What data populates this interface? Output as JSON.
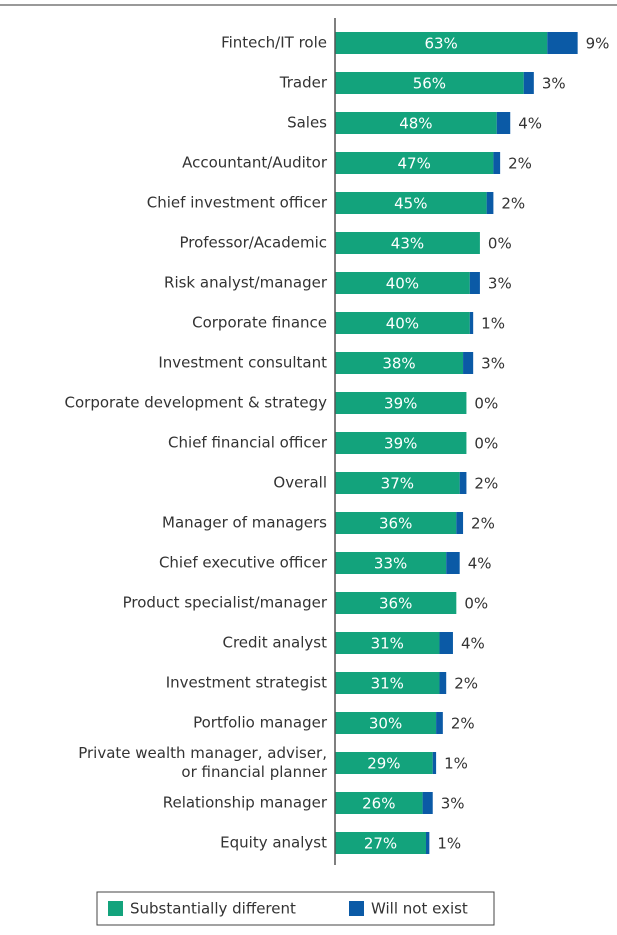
{
  "chart_data": {
    "type": "stacked-bar-horizontal",
    "categories": [
      "Fintech/IT role",
      "Trader",
      "Sales",
      "Accountant/Auditor",
      "Chief investment officer",
      "Professor/Academic",
      "Risk analyst/manager",
      "Corporate finance",
      "Investment consultant",
      "Corporate development & strategy",
      "Chief financial officer",
      "Overall",
      "Manager of managers",
      "Chief executive officer",
      "Product specialist/manager",
      "Credit analyst",
      "Investment strategist",
      "Portfolio manager",
      [
        "Private wealth manager, adviser,",
        "or financial planner"
      ],
      "Relationship manager",
      "Equity analyst"
    ],
    "series": [
      {
        "name": "Substantially different",
        "color": "#13a37c",
        "values": [
          63,
          56,
          48,
          47,
          45,
          43,
          40,
          40,
          38,
          39,
          39,
          37,
          36,
          33,
          36,
          31,
          31,
          30,
          29,
          26,
          27
        ],
        "value_labels": [
          "63%",
          "56%",
          "48%",
          "47%",
          "45%",
          "43%",
          "40%",
          "40%",
          "38%",
          "39%",
          "39%",
          "37%",
          "36%",
          "33%",
          "36%",
          "31%",
          "31%",
          "30%",
          "29%",
          "26%",
          "27%"
        ]
      },
      {
        "name": "Will not exist",
        "color": "#0b5aa6",
        "values": [
          9,
          3,
          4,
          2,
          2,
          0,
          3,
          1,
          3,
          0,
          0,
          2,
          2,
          4,
          0,
          4,
          2,
          2,
          1,
          3,
          1
        ],
        "value_labels": [
          "9%",
          "3%",
          "4%",
          "2%",
          "2%",
          "0%",
          "3%",
          "1%",
          "3%",
          "0%",
          "0%",
          "2%",
          "2%",
          "4%",
          "0%",
          "4%",
          "2%",
          "2%",
          "1%",
          "3%",
          "1%"
        ]
      }
    ]
  }
}
